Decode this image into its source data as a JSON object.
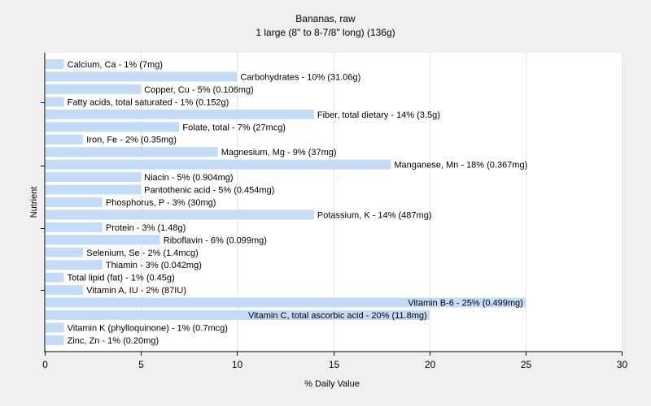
{
  "chart_data": {
    "type": "bar",
    "orientation": "horizontal",
    "title": "Bananas, raw",
    "subtitle": "1 large (8\" to 8-7/8\" long) (136g)",
    "xlabel": "% Daily Value",
    "ylabel": "Nutrient",
    "xlim": [
      0,
      30
    ],
    "xticks": [
      "0",
      "5",
      "10",
      "15",
      "20",
      "25",
      "30"
    ],
    "grid": true,
    "bar_color": "#c5dcf7",
    "plot_bg": "#ffffff",
    "page_bg": "#f0f0f0",
    "categories": [
      "Calcium, Ca",
      "Carbohydrates",
      "Copper, Cu",
      "Fatty acids, total saturated",
      "Fiber, total dietary",
      "Folate, total",
      "Iron, Fe",
      "Magnesium, Mg",
      "Manganese, Mn",
      "Niacin",
      "Pantothenic acid",
      "Phosphorus, P",
      "Potassium, K",
      "Protein",
      "Riboflavin",
      "Selenium, Se",
      "Thiamin",
      "Total lipid (fat)",
      "Vitamin A, IU",
      "Vitamin B-6",
      "Vitamin C, total ascorbic acid",
      "Vitamin K (phylloquinone)",
      "Zinc, Zn"
    ],
    "values": [
      1,
      10,
      5,
      1,
      14,
      7,
      2,
      9,
      18,
      5,
      5,
      3,
      14,
      3,
      6,
      2,
      3,
      1,
      2,
      25,
      20,
      1,
      1
    ],
    "labels": [
      "Calcium, Ca - 1% (7mg)",
      "Carbohydrates - 10% (31.06g)",
      "Copper, Cu - 5% (0.106mg)",
      "Fatty acids, total saturated - 1% (0.152g)",
      "Fiber, total dietary - 14% (3.5g)",
      "Folate, total - 7% (27mcg)",
      "Iron, Fe - 2% (0.35mg)",
      "Magnesium, Mg - 9% (37mg)",
      "Manganese, Mn - 18% (0.367mg)",
      "Niacin - 5% (0.904mg)",
      "Pantothenic acid - 5% (0.454mg)",
      "Phosphorus, P - 3% (30mg)",
      "Potassium, K - 14% (487mg)",
      "Protein - 3% (1.48g)",
      "Riboflavin - 6% (0.099mg)",
      "Selenium, Se - 2% (1.4mcg)",
      "Thiamin - 3% (0.042mg)",
      "Total lipid (fat) - 1% (0.45g)",
      "Vitamin A, IU - 2% (87IU)",
      "Vitamin B-6 - 25% (0.499mg)",
      "Vitamin C, total ascorbic acid - 20% (11.8mg)",
      "Vitamin K (phylloquinone) - 1% (0.7mcg)",
      "Zinc, Zn - 1% (0.20mg)"
    ]
  }
}
